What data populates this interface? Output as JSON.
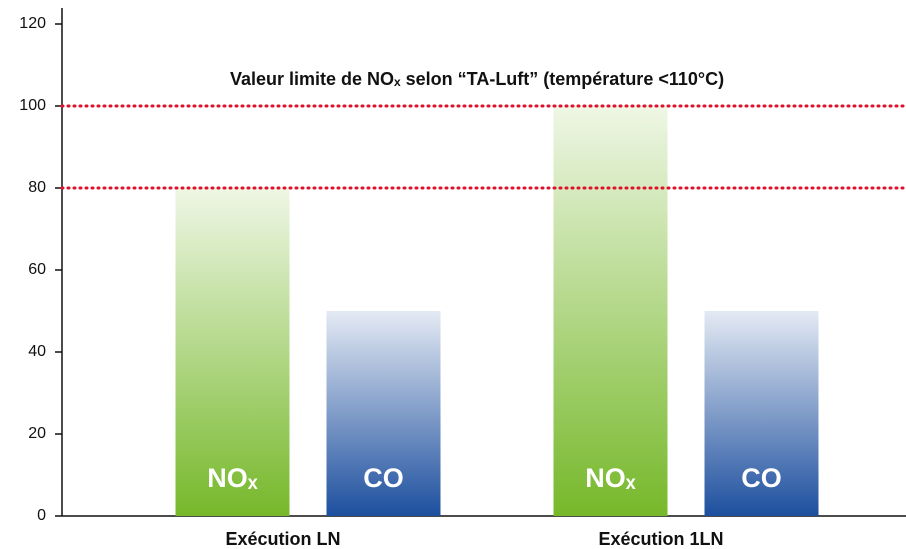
{
  "chart_data": {
    "type": "bar",
    "categories": [
      "Exécution LN",
      "Exécution 1LN"
    ],
    "series": [
      {
        "name": "NOₓ",
        "color": "#76b82a",
        "values": [
          80,
          100
        ]
      },
      {
        "name": "CO",
        "color": "#1d4f9e",
        "values": [
          50,
          50
        ]
      }
    ],
    "ylim": [
      0,
      120
    ],
    "yticks": [
      0,
      20,
      40,
      60,
      80,
      100,
      120
    ],
    "reference_lines": [
      100,
      80
    ],
    "reference_color": "#e0102a",
    "annotation": "Valeur limite de NOₓ selon “TA-Luft” (température <110°C)"
  }
}
